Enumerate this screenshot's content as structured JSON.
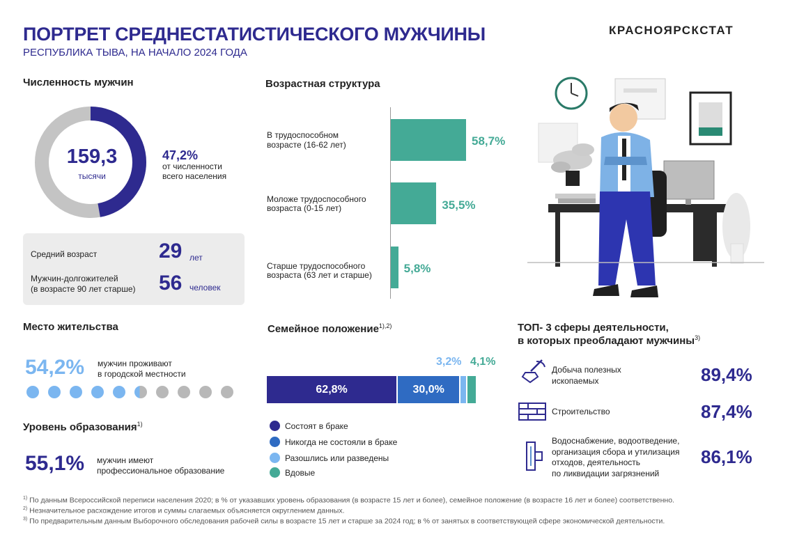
{
  "header": {
    "title": "ПОРТРЕТ СРЕДНЕСТАТИСТИЧЕСКОГО МУЖЧИНЫ",
    "subtitle": "РЕСПУБЛИКА ТЫВА, НА НАЧАЛО 2024 ГОДА",
    "logo": "КРАСНОЯРСКСТАТ"
  },
  "population": {
    "heading": "Численность мужчин",
    "value": "159,3",
    "unit": "тысячи",
    "share": "47,2%",
    "share_text_1": "от численности",
    "share_text_2": "всего населения",
    "share_fraction": 0.472,
    "colors": {
      "men": "#2e2a8f",
      "rest": "#c4c4c4"
    }
  },
  "stats": {
    "avg_age_label": "Средний возраст",
    "avg_age_value": "29",
    "avg_age_unit": "лет",
    "longlivers_label_1": "Мужчин-долгожителей",
    "longlivers_label_2": "(в возрасте 90 лет старше)",
    "longlivers_value": "56",
    "longlivers_unit": "человек"
  },
  "age_structure": {
    "heading": "Возрастная структура",
    "items": [
      {
        "label_1": "В трудоспособном",
        "label_2": "возрасте  (16-62 лет)",
        "value": 58.7,
        "text": "58,7%"
      },
      {
        "label_1": "Моложе  трудоспособного",
        "label_2": "возраста  (0-15  лет)",
        "value": 35.5,
        "text": "35,5%"
      },
      {
        "label_1": "Старше  трудоспособного",
        "label_2": "возраста  (63 лет и старше)",
        "value": 5.8,
        "text": "5,8%"
      }
    ]
  },
  "residence": {
    "heading": "Место жительства",
    "value": "54,2%",
    "text_1": "мужчин проживают",
    "text_2": "в городской местности",
    "fraction": 0.542
  },
  "education": {
    "heading": "Уровень образования",
    "note": "1)",
    "value": "55,1%",
    "text_1": "мужчин имеют",
    "text_2": "профессиональное  образование"
  },
  "marital": {
    "heading": "Семейное положение",
    "note": "1),2)",
    "segments": [
      {
        "name": "Состоят  в браке",
        "value": 62.8,
        "text": "62,8%",
        "color": "#2e2a8f"
      },
      {
        "name": "Никогда не состояли  в браке",
        "value": 30.0,
        "text": "30,0%",
        "color": "#2f6bc2"
      },
      {
        "name": "Разошлись или разведены",
        "value": 3.2,
        "text": "3,2%",
        "color": "#7bb6f0"
      },
      {
        "name": "Вдовые",
        "value": 4.1,
        "text": "4,1%",
        "color": "#44aa96"
      }
    ]
  },
  "top3": {
    "heading_1": "ТОП- 3 сферы деятельности,",
    "heading_2": "в которых преобладают мужчины",
    "note": "3)",
    "items": [
      {
        "label_1": "Добыча  полезных",
        "label_2": "ископаемых",
        "value": "89,4%",
        "icon": "mining-icon"
      },
      {
        "label_1": "Строительство",
        "value": "87,4%",
        "icon": "construction-icon"
      },
      {
        "label_1": "Водоснабжение,  водоотведение,",
        "label_2": "организация  сбора и утилизация",
        "label_3": "отходов,  деятельность",
        "label_4": "по ликвидации  загрязнений",
        "value": "86,1%",
        "icon": "pipe-icon"
      }
    ]
  },
  "footnotes": {
    "n1": "1)",
    "f1": " По данным Всероссийской переписи населения 2020; в % от указавших уровень образования (в возрасте 15 лет и более), семейное положение (в возрасте 16 лет и более) соответственно.",
    "n2": "2)",
    "f2": " Незначительное расхождение итогов и суммы слагаемых объясняется округлением данных.",
    "n3": "3)",
    "f3": " По предварительным данным Выборочного обследования рабочей силы в возрасте 15 лет и старше  за 2024 год; в % от занятых в соответствующей  сфере экономической деятельности."
  }
}
